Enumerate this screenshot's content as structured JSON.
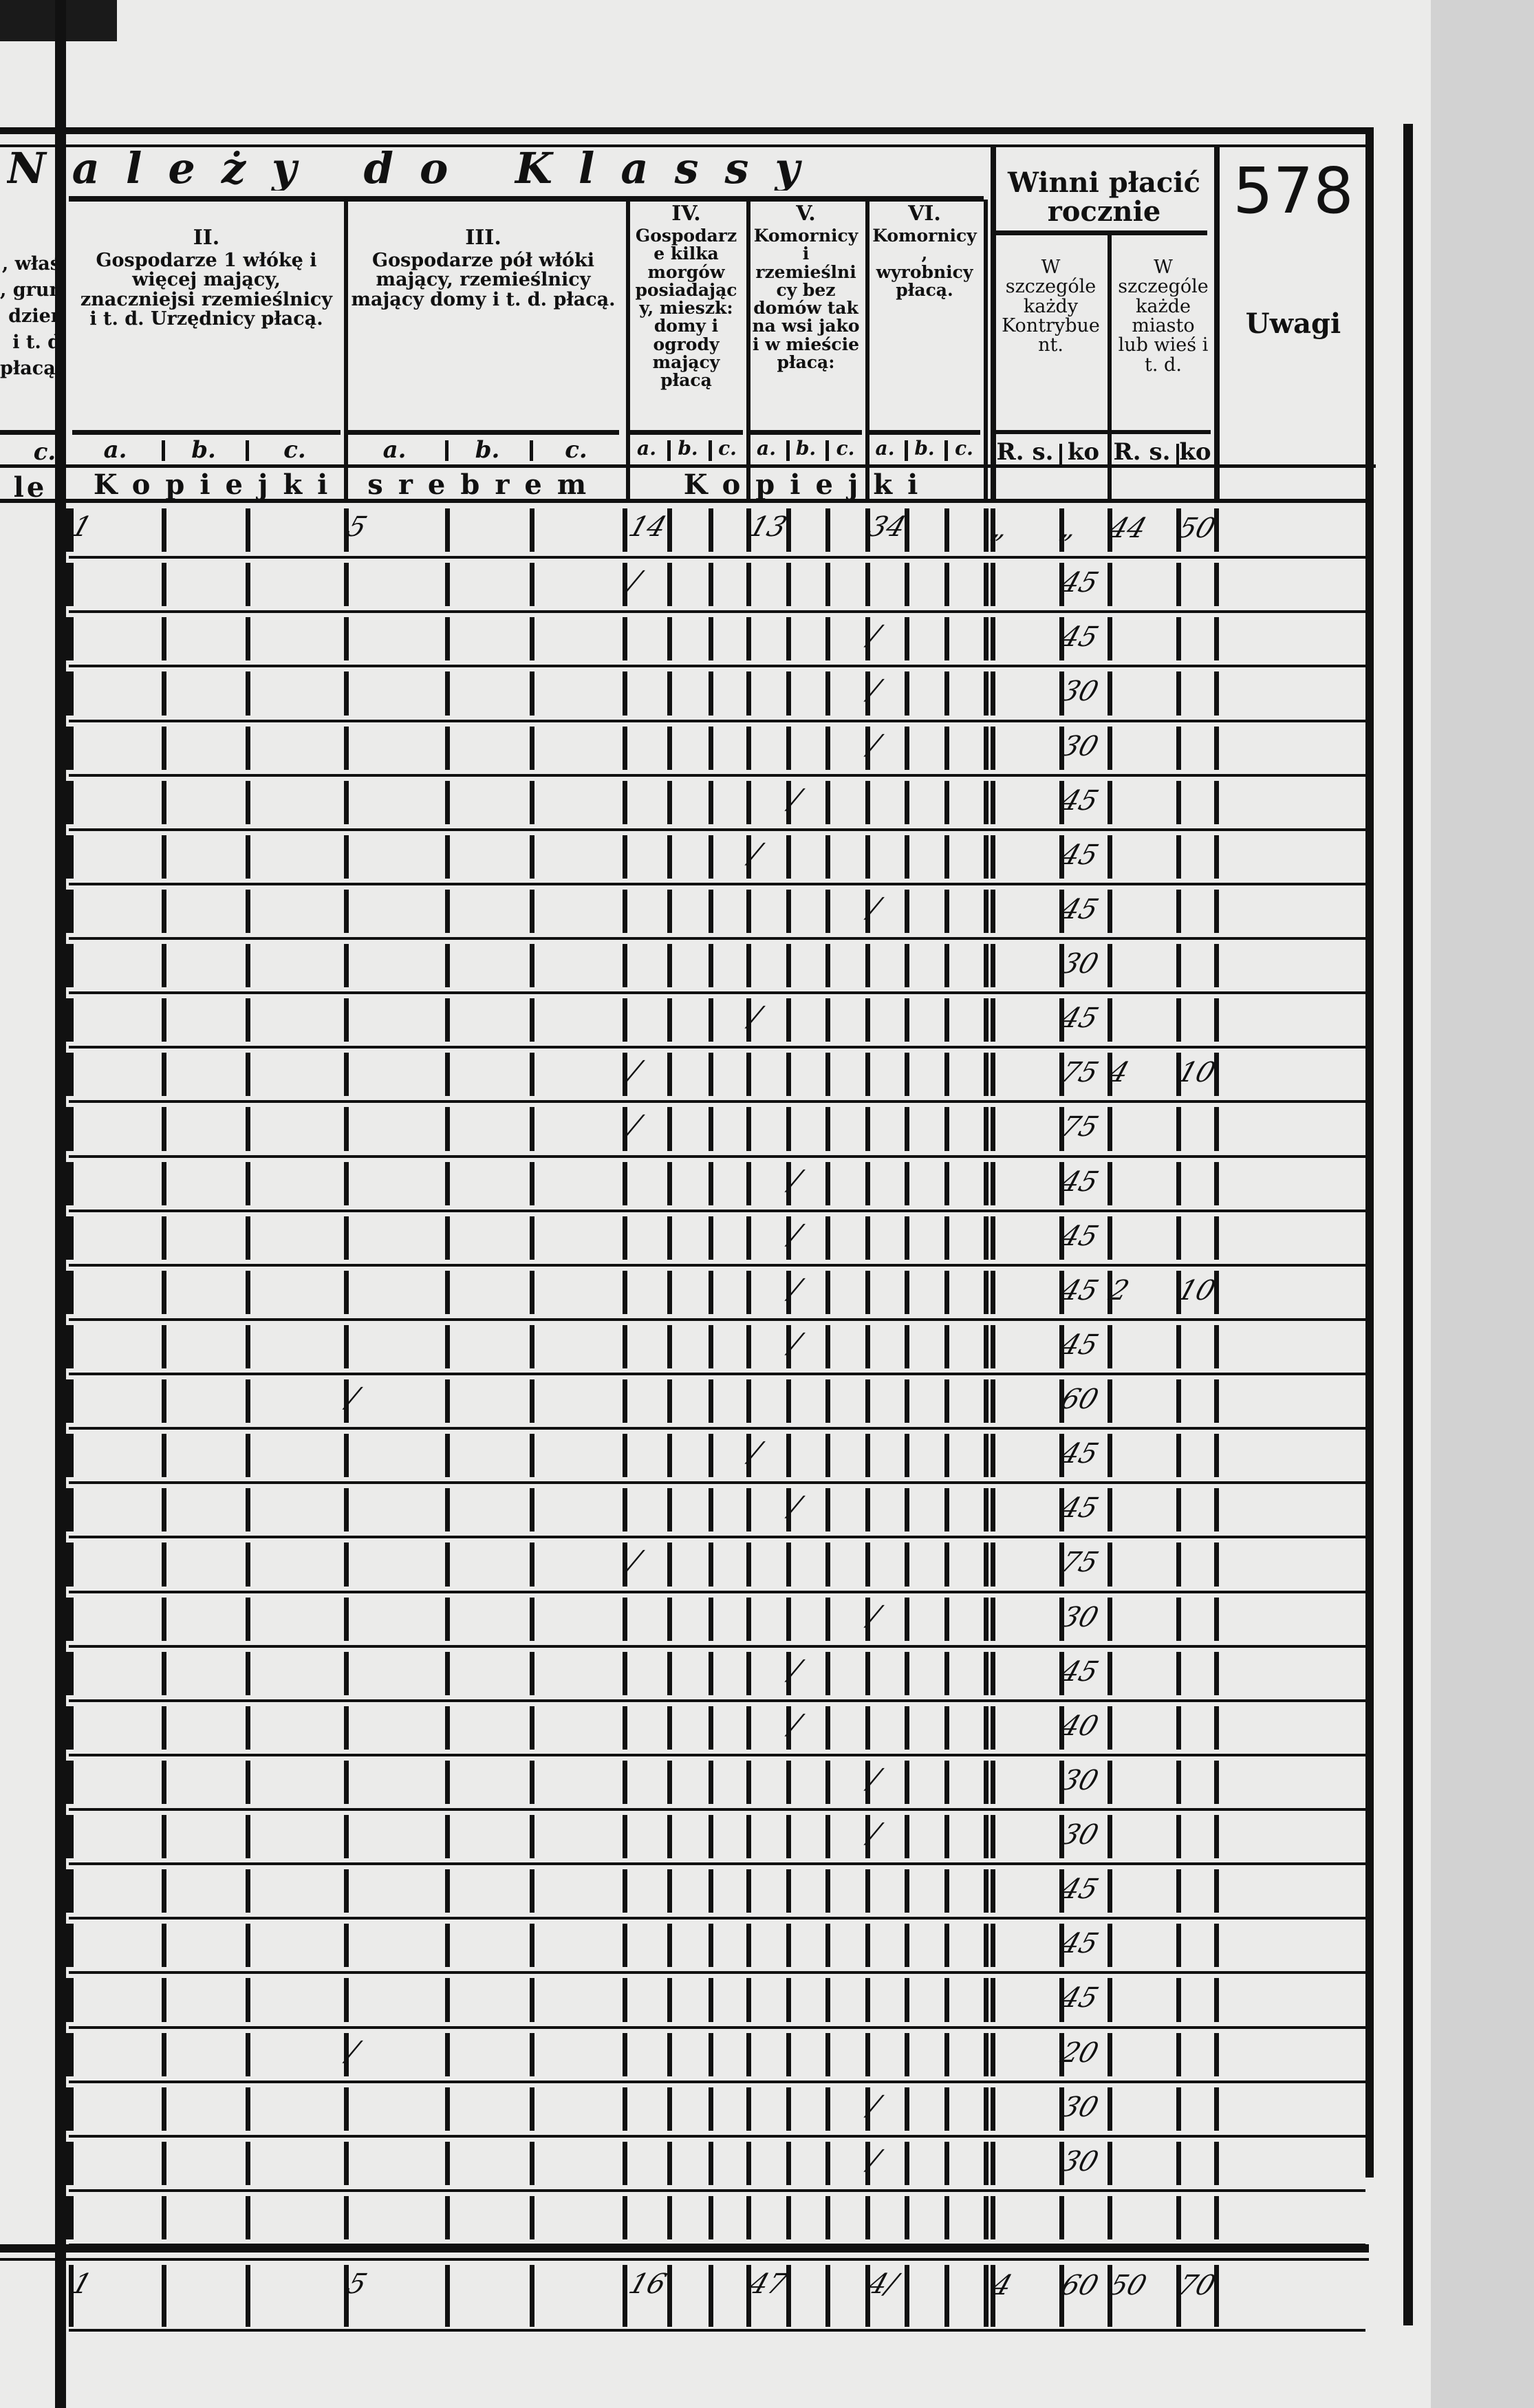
{
  "header": {
    "title": "Należy do Klassy",
    "page_number": "578",
    "left_fragment_lines": [
      ", właś",
      ", grun",
      "dzier",
      "i t. d",
      "płacą."
    ],
    "left_fragment_sub": "c.",
    "left_fragment_unit": "le",
    "classes": [
      {
        "numeral": "II.",
        "text": "Gospodarze 1 włókę i więcej mający, znaczniejsi rzemieślnicy i t. d. Urzędnicy płacą."
      },
      {
        "numeral": "III.",
        "text": "Gospodarze pół włóki mający, rzemieślnicy mający domy i t. d. płacą."
      },
      {
        "numeral": "IV.",
        "text": "Gospodarze kilka morgów posiadający, mieszk: domy i ogrody mający płacą"
      },
      {
        "numeral": "V.",
        "text": "Komornicy i rzemieślnicy bez domów tak na wsi jako i w mieście płacą:"
      },
      {
        "numeral": "VI.",
        "text": "Komornicy, wyrobnicy płacą."
      }
    ],
    "subcols": [
      "a.",
      "b.",
      "c."
    ],
    "unit_silver": "Kopiejki srebrem",
    "unit_kop": "Kopiejki",
    "winni_title": "Winni płacić rocznie",
    "winni_sub1": "W szczególe każdy Kontrybuent.",
    "winni_sub2": "W szczególe każde miasto lub wieś i t. d.",
    "rs_label": "R. s.",
    "ko_label": "ko",
    "uwagi": "Uwagi"
  },
  "rows": [
    {
      "marks": {
        "IIa": "1",
        "IIIa": "5",
        "IVa": "14",
        "Va": "13",
        "VIa": "34"
      },
      "rs1": "„",
      "ko1": "„",
      "rs2": "44",
      "ko2": "50"
    },
    {
      "marks": {
        "IVa": "/"
      },
      "ko1": "45"
    },
    {
      "marks": {
        "VIa": "/"
      },
      "ko1": "45"
    },
    {
      "marks": {
        "VIa": "/"
      },
      "ko1": "30"
    },
    {
      "marks": {
        "VIa": "/"
      },
      "ko1": "30"
    },
    {
      "marks": {
        "Vb": "/"
      },
      "ko1": "45"
    },
    {
      "marks": {
        "Va": "/"
      },
      "ko1": "45"
    },
    {
      "marks": {
        "VIa": "/"
      },
      "ko1": "45"
    },
    {
      "marks": {},
      "ko1": "30"
    },
    {
      "marks": {
        "Va": "/"
      },
      "ko1": "45"
    },
    {
      "marks": {
        "IVa": "/"
      },
      "ko1": "75",
      "rs2": "4",
      "ko2": "10"
    },
    {
      "marks": {
        "IVa": "/"
      },
      "ko1": "75"
    },
    {
      "marks": {
        "Vb": "/"
      },
      "ko1": "45"
    },
    {
      "marks": {
        "Vb": "/"
      },
      "ko1": "45"
    },
    {
      "marks": {
        "Vb": "/"
      },
      "ko1": "45",
      "rs2": "2",
      "ko2": "10"
    },
    {
      "marks": {
        "Vb": "/"
      },
      "ko1": "45"
    },
    {
      "marks": {
        "IIIa": "/"
      },
      "ko1": "60"
    },
    {
      "marks": {
        "Va": "/"
      },
      "ko1": "45"
    },
    {
      "marks": {
        "Vb": "/"
      },
      "ko1": "45"
    },
    {
      "marks": {
        "IVa": "/"
      },
      "ko1": "75"
    },
    {
      "marks": {
        "VIa": "/"
      },
      "ko1": "30"
    },
    {
      "marks": {
        "Vb": "/"
      },
      "ko1": "45"
    },
    {
      "marks": {
        "Vb": "/"
      },
      "ko1": "40"
    },
    {
      "marks": {
        "VIa": "/"
      },
      "ko1": "30"
    },
    {
      "marks": {
        "VIa": "/"
      },
      "ko1": "30"
    },
    {
      "marks": {},
      "ko1": "45"
    },
    {
      "marks": {},
      "ko1": "45"
    },
    {
      "marks": {},
      "ko1": "45"
    },
    {
      "marks": {
        "IIIa": "/"
      },
      "ko1": "20"
    },
    {
      "marks": {
        "VIa": "/"
      },
      "ko1": "30"
    },
    {
      "marks": {
        "VIa": "/"
      },
      "ko1": "30"
    },
    {
      "marks": {}
    }
  ],
  "totals": {
    "marks": {
      "IIa": "1",
      "IIIa": "5",
      "IVa": "16",
      "Va": "47",
      "VIa": "4/"
    },
    "rs1": "4",
    "ko1": "60",
    "rs2": "50",
    "ko2": "70"
  }
}
